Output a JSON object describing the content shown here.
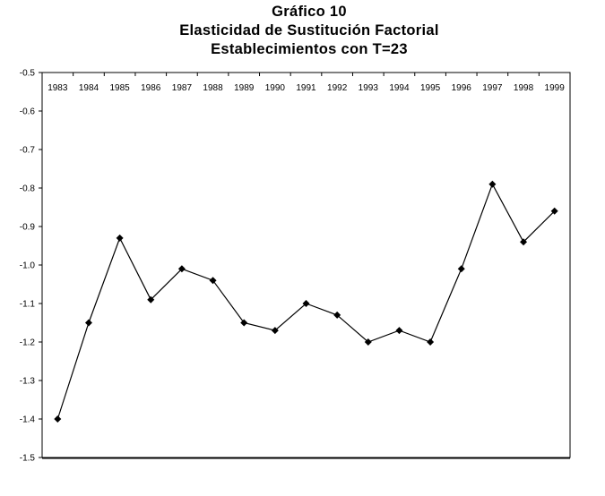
{
  "title": "Gráfico 10",
  "subtitle_line1": "Elasticidad de Sustitución Factorial",
  "subtitle_line2": "Establecimientos con T=23",
  "chart_data": {
    "type": "line",
    "title": "Gráfico 10",
    "subtitle": "Elasticidad de Sustitución Factorial / Establecimientos con T=23",
    "xlabel": "",
    "ylabel": "",
    "x": [
      "1983",
      "1984",
      "1985",
      "1986",
      "1987",
      "1988",
      "1989",
      "1990",
      "1991",
      "1992",
      "1993",
      "1994",
      "1995",
      "1996",
      "1997",
      "1998",
      "1999"
    ],
    "series": [
      {
        "values": [
          -1.4,
          -1.15,
          -0.93,
          -1.09,
          -1.01,
          -1.04,
          -1.15,
          -1.17,
          -1.1,
          -1.13,
          -1.2,
          -1.17,
          -1.2,
          -1.01,
          -0.79,
          -0.94,
          -0.86
        ]
      }
    ],
    "ylim": [
      -1.5,
      -0.5
    ],
    "yticks": [
      "-0.5",
      "-0.6",
      "-0.7",
      "-0.8",
      "-0.9",
      "-1.0",
      "-1.1",
      "-1.2",
      "-1.3",
      "-1.4",
      "-1.5"
    ],
    "x_axis_position": "top",
    "grid": false,
    "legend": "none",
    "line_color": "#000000",
    "marker": "diamond"
  }
}
